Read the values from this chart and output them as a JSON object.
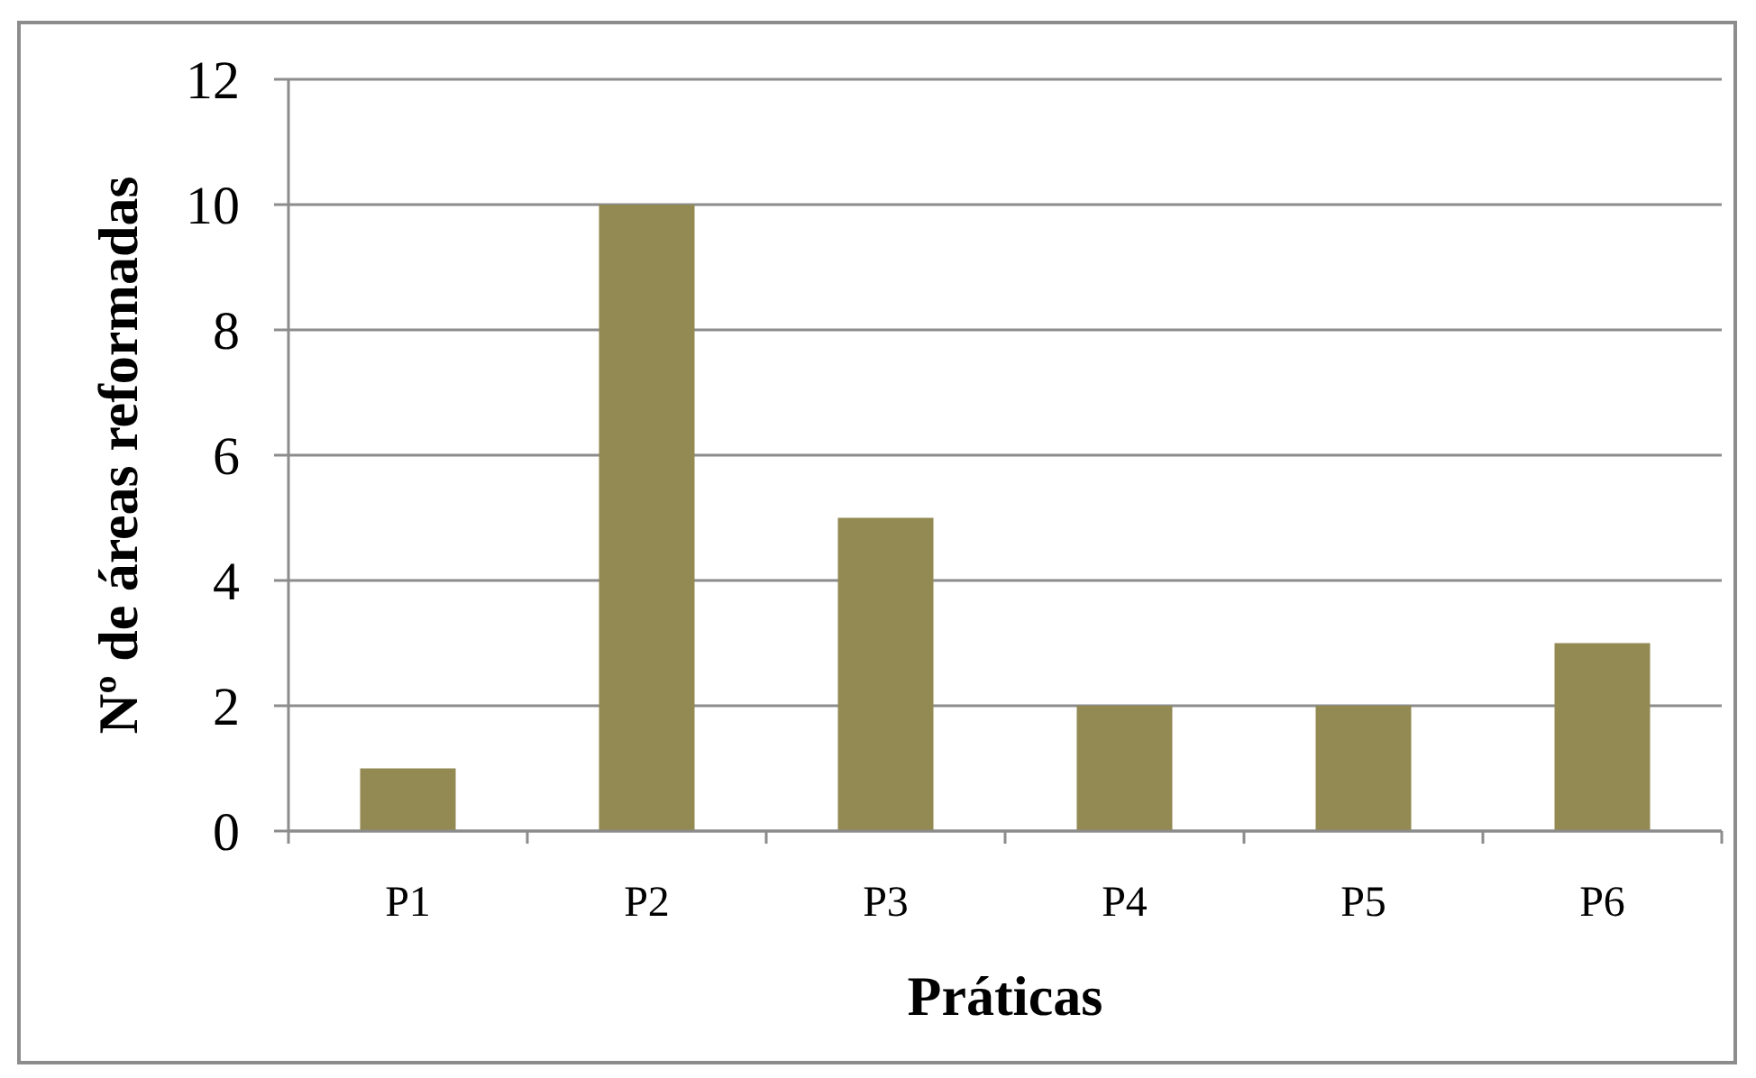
{
  "chart_data": {
    "type": "bar",
    "xlabel": "Práticas",
    "ylabel": "Nº de áreas reformadas",
    "categories": [
      "P1",
      "P2",
      "P3",
      "P4",
      "P5",
      "P6"
    ],
    "values": [
      1,
      10,
      5,
      2,
      2,
      3
    ],
    "color": "#938953",
    "ylim": [
      0,
      12
    ],
    "yticks": [
      0,
      2,
      4,
      6,
      8,
      10,
      12
    ],
    "grid": "y"
  }
}
